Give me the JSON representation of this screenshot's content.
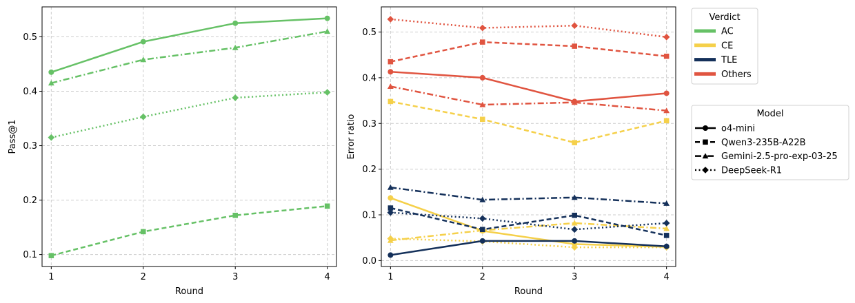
{
  "chart_data": [
    {
      "type": "line",
      "panel": "left",
      "xlabel": "Round",
      "ylabel": "Pass@1",
      "x": [
        1,
        2,
        3,
        4
      ],
      "xlim": [
        0.9,
        4.1
      ],
      "ylim": [
        0.078,
        0.555
      ],
      "yticks": [
        0.1,
        0.2,
        0.3,
        0.4,
        0.5
      ],
      "ytick_labels": [
        "0.1",
        "0.2",
        "0.3",
        "0.4",
        "0.5"
      ],
      "xtick_labels": [
        "1",
        "2",
        "3",
        "4"
      ],
      "grid": true,
      "series": [
        {
          "name": "o4-mini",
          "verdict": "AC",
          "model": "o4-mini",
          "values": [
            0.435,
            0.491,
            0.525,
            0.534
          ]
        },
        {
          "name": "Qwen3-235B-A22B",
          "verdict": "AC",
          "model": "Qwen3-235B-A22B",
          "values": [
            0.098,
            0.142,
            0.172,
            0.189
          ]
        },
        {
          "name": "Gemini-2.5-pro-exp-03-25",
          "verdict": "AC",
          "model": "Gemini-2.5-pro-exp-03-25",
          "values": [
            0.415,
            0.458,
            0.48,
            0.51
          ]
        },
        {
          "name": "DeepSeek-R1",
          "verdict": "AC",
          "model": "DeepSeek-R1",
          "values": [
            0.315,
            0.353,
            0.388,
            0.398
          ]
        }
      ]
    },
    {
      "type": "line",
      "panel": "right",
      "xlabel": "Round",
      "ylabel": "Error ratio",
      "x": [
        1,
        2,
        3,
        4
      ],
      "xlim": [
        0.9,
        4.1
      ],
      "ylim": [
        -0.013,
        0.555
      ],
      "yticks": [
        0.0,
        0.1,
        0.2,
        0.3,
        0.4,
        0.5
      ],
      "ytick_labels": [
        "0.0",
        "0.1",
        "0.2",
        "0.3",
        "0.4",
        "0.5"
      ],
      "xtick_labels": [
        "1",
        "2",
        "3",
        "4"
      ],
      "grid": true,
      "series": [
        {
          "name": "Others / DeepSeek-R1",
          "verdict": "Others",
          "model": "DeepSeek-R1",
          "values": [
            0.528,
            0.509,
            0.514,
            0.489
          ]
        },
        {
          "name": "Others / Qwen3-235B-A22B",
          "verdict": "Others",
          "model": "Qwen3-235B-A22B",
          "values": [
            0.435,
            0.478,
            0.469,
            0.447
          ]
        },
        {
          "name": "Others / o4-mini",
          "verdict": "Others",
          "model": "o4-mini",
          "values": [
            0.413,
            0.4,
            0.348,
            0.366
          ]
        },
        {
          "name": "Others / Gemini-2.5-pro-exp-03-25",
          "verdict": "Others",
          "model": "Gemini-2.5-pro-exp-03-25",
          "values": [
            0.381,
            0.341,
            0.346,
            0.328
          ]
        },
        {
          "name": "CE / Qwen3-235B-A22B",
          "verdict": "CE",
          "model": "Qwen3-235B-A22B",
          "values": [
            0.348,
            0.309,
            0.258,
            0.306
          ]
        },
        {
          "name": "CE / o4-mini",
          "verdict": "CE",
          "model": "o4-mini",
          "values": [
            0.137,
            0.065,
            0.036,
            0.03
          ]
        },
        {
          "name": "CE / Gemini-2.5-pro-exp-03-25",
          "verdict": "CE",
          "model": "Gemini-2.5-pro-exp-03-25",
          "values": [
            0.044,
            0.066,
            0.082,
            0.07
          ]
        },
        {
          "name": "CE / DeepSeek-R1",
          "verdict": "CE",
          "model": "DeepSeek-R1",
          "values": [
            0.048,
            0.042,
            0.029,
            0.029
          ]
        },
        {
          "name": "TLE / Gemini-2.5-pro-exp-03-25",
          "verdict": "TLE",
          "model": "Gemini-2.5-pro-exp-03-25",
          "values": [
            0.16,
            0.133,
            0.138,
            0.125
          ]
        },
        {
          "name": "TLE / Qwen3-235B-A22B",
          "verdict": "TLE",
          "model": "Qwen3-235B-A22B",
          "values": [
            0.115,
            0.068,
            0.099,
            0.055
          ]
        },
        {
          "name": "TLE / DeepSeek-R1",
          "verdict": "TLE",
          "model": "DeepSeek-R1",
          "values": [
            0.105,
            0.092,
            0.068,
            0.082
          ]
        },
        {
          "name": "TLE / o4-mini",
          "verdict": "TLE",
          "model": "o4-mini",
          "values": [
            0.012,
            0.043,
            0.043,
            0.031
          ]
        }
      ]
    }
  ],
  "verdict_colors": {
    "AC": "#66c166",
    "CE": "#f5d04a",
    "TLE": "#14305a",
    "Others": "#e05440"
  },
  "model_styles": {
    "o4-mini": {
      "dash": "solid",
      "marker": "circle"
    },
    "Qwen3-235B-A22B": {
      "dash": "dashed",
      "marker": "square"
    },
    "Gemini-2.5-pro-exp-03-25": {
      "dash": "dashdot",
      "marker": "triangle"
    },
    "DeepSeek-R1": {
      "dash": "dotted",
      "marker": "diamond"
    }
  },
  "legend_verdict": {
    "title": "Verdict",
    "entries": [
      "AC",
      "CE",
      "TLE",
      "Others"
    ]
  },
  "legend_model": {
    "title": "Model",
    "entries": [
      "o4-mini",
      "Qwen3-235B-A22B",
      "Gemini-2.5-pro-exp-03-25",
      "DeepSeek-R1"
    ]
  }
}
